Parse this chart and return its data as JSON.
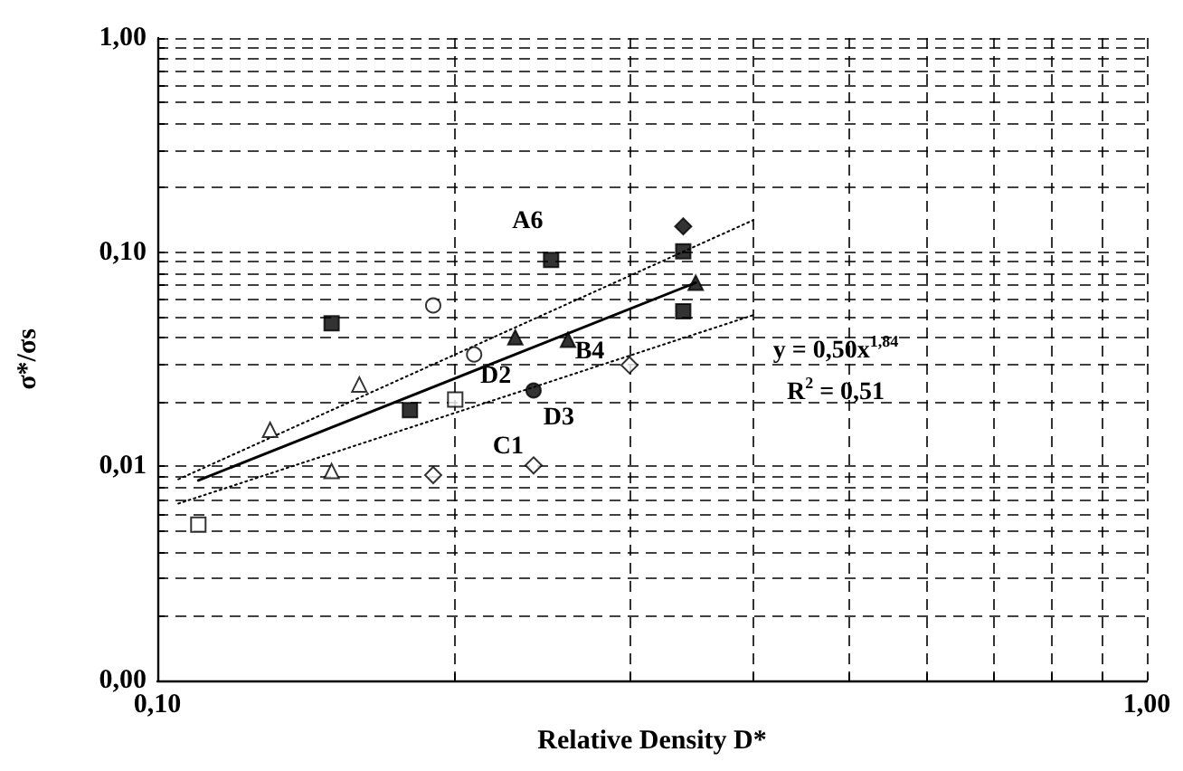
{
  "chart_data": {
    "type": "scatter",
    "xlabel": "Relative Density D*",
    "ylabel": "σ*/σs",
    "log": "xy",
    "grid": true,
    "xlim": [
      0.1,
      1
    ],
    "xticks": [
      {
        "value": 0.1,
        "label": "0,10"
      },
      {
        "value": 0.2,
        "label": null
      },
      {
        "value": 0.3,
        "label": null
      },
      {
        "value": 0.4,
        "label": null
      },
      {
        "value": 0.5,
        "label": null
      },
      {
        "value": 0.6,
        "label": null
      },
      {
        "value": 0.7,
        "label": null
      },
      {
        "value": 0.8,
        "label": null
      },
      {
        "value": 0.9,
        "label": null
      },
      {
        "value": 1,
        "label": "1,00"
      }
    ],
    "ylim": [
      0.001,
      1
    ],
    "yticks": [
      {
        "value": 0.001,
        "label": "0,00"
      },
      {
        "value": 0.002,
        "label": null
      },
      {
        "value": 0.003,
        "label": null
      },
      {
        "value": 0.004,
        "label": null
      },
      {
        "value": 0.005,
        "label": null
      },
      {
        "value": 0.006,
        "label": null
      },
      {
        "value": 0.007,
        "label": null
      },
      {
        "value": 0.008,
        "label": null
      },
      {
        "value": 0.009,
        "label": null
      },
      {
        "value": 0.01,
        "label": "0,01"
      },
      {
        "value": 0.02,
        "label": null
      },
      {
        "value": 0.03,
        "label": null
      },
      {
        "value": 0.04,
        "label": null
      },
      {
        "value": 0.05,
        "label": null
      },
      {
        "value": 0.06,
        "label": null
      },
      {
        "value": 0.07,
        "label": null
      },
      {
        "value": 0.08,
        "label": null
      },
      {
        "value": 0.09,
        "label": null
      },
      {
        "value": 0.1,
        "label": "0,10"
      },
      {
        "value": 0.2,
        "label": null
      },
      {
        "value": 0.3,
        "label": null
      },
      {
        "value": 0.4,
        "label": null
      },
      {
        "value": 0.5,
        "label": null
      },
      {
        "value": 0.6,
        "label": null
      },
      {
        "value": 0.7,
        "label": null
      },
      {
        "value": 0.8,
        "label": null
      },
      {
        "value": 0.9,
        "label": null
      },
      {
        "value": 1,
        "label": "1,00"
      }
    ],
    "series": [
      {
        "color": "#000000",
        "marker": "square",
        "x": [
          0.15,
          0.18,
          0.25,
          0.34,
          0.34
        ],
        "values": [
          0.0465,
          0.0183,
          0.092,
          0.101,
          0.053
        ]
      },
      {
        "color": "#000000",
        "marker": "diamond",
        "x": [
          0.34
        ],
        "values": [
          0.132
        ]
      },
      {
        "color": "#000000",
        "marker": "triangle",
        "x": [
          0.23,
          0.26,
          0.35
        ],
        "values": [
          0.04,
          0.039,
          0.072
        ]
      },
      {
        "color": "#000000",
        "marker": "circle",
        "x": [
          0.24
        ],
        "values": [
          0.0226
        ]
      },
      {
        "color": "#000000",
        "marker": "circle-open",
        "x": [
          0.19,
          0.209
        ],
        "values": [
          0.0564,
          0.0333
        ]
      },
      {
        "color": "#000000",
        "marker": "triangle-open",
        "x": [
          0.13,
          0.16,
          0.15
        ],
        "values": [
          0.0148,
          0.0241,
          0.0095
        ]
      },
      {
        "color": "#000000",
        "marker": "square-open",
        "x": [
          0.11,
          0.2
        ],
        "values": [
          0.00534,
          0.0205
        ]
      },
      {
        "color": "#000000",
        "marker": "diamond-open",
        "x": [
          0.19,
          0.24,
          0.3
        ],
        "values": [
          0.0091,
          0.0101,
          0.0297
        ]
      },
      {
        "type": "line",
        "color": "#000000",
        "line_style": "solid",
        "x": [
          0.11,
          0.35
        ],
        "values": [
          0.0086,
          0.072
        ]
      },
      {
        "type": "line",
        "color": "#000000",
        "line_style": "dotted",
        "x": [
          0.105,
          0.4
        ],
        "values": [
          0.0087,
          0.141
        ]
      },
      {
        "type": "line",
        "color": "#000000",
        "line_style": "dotted",
        "x": [
          0.105,
          0.4
        ],
        "values": [
          0.0067,
          0.0508
        ]
      }
    ],
    "annotations": [
      {
        "text": "A6",
        "x": 0.25,
        "y": 0.092
      },
      {
        "text": "D2",
        "x": 0.209,
        "y": 0.0333
      },
      {
        "text": "B4",
        "x": 0.26,
        "y": 0.039
      },
      {
        "text": "D3",
        "x": 0.24,
        "y": 0.0226
      },
      {
        "text": "C1",
        "x": 0.24,
        "y": 0.0101
      },
      "y = 0,50x$^{1,84}$",
      "R$^{2}$ = 0,51"
    ]
  }
}
